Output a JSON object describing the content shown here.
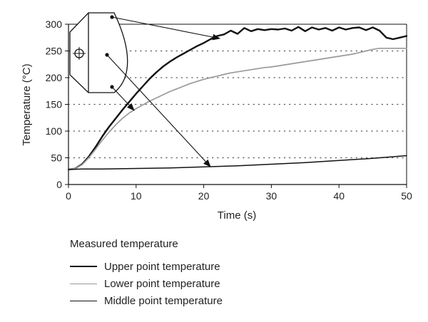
{
  "chart_data": {
    "type": "line",
    "xlabel": "Time (s)",
    "ylabel": "Temperature (°C)",
    "xlim": [
      0,
      50
    ],
    "ylim": [
      0,
      300
    ],
    "x_ticks": [
      "0",
      "10",
      "20",
      "30",
      "40",
      "50"
    ],
    "y_ticks": [
      "0",
      "50",
      "100",
      "150",
      "200",
      "250",
      "300"
    ],
    "grid": "horizontal dotted",
    "legend_title": "Measured temperature",
    "legend_placement": "below",
    "series": [
      {
        "name": "Upper point temperature",
        "color": "#111111",
        "x": [
          0,
          1,
          2,
          3,
          4,
          5,
          6,
          7,
          8,
          9,
          10,
          11,
          12,
          13,
          14,
          15,
          16,
          17,
          18,
          19,
          20,
          21,
          22,
          23,
          24,
          25,
          26,
          27,
          28,
          29,
          30,
          31,
          32,
          33,
          34,
          35,
          36,
          37,
          38,
          39,
          40,
          41,
          42,
          43,
          44,
          45,
          46,
          47,
          48,
          49,
          50
        ],
        "y": [
          28,
          30,
          38,
          52,
          70,
          90,
          108,
          124,
          140,
          155,
          170,
          184,
          198,
          210,
          221,
          230,
          238,
          245,
          252,
          259,
          265,
          272,
          278,
          281,
          288,
          282,
          293,
          287,
          291,
          289,
          291,
          290,
          292,
          288,
          295,
          287,
          294,
          290,
          293,
          288,
          294,
          290,
          293,
          294,
          289,
          294,
          288,
          275,
          272,
          275,
          278
        ]
      },
      {
        "name": "Lower point temperature",
        "color": "#9a9a9a",
        "x": [
          0,
          1,
          2,
          3,
          4,
          5,
          6,
          7,
          8,
          9,
          10,
          11,
          12,
          13,
          14,
          15,
          16,
          17,
          18,
          19,
          20,
          21,
          22,
          23,
          24,
          25,
          26,
          27,
          28,
          29,
          30,
          31,
          32,
          33,
          34,
          35,
          36,
          37,
          38,
          39,
          40,
          41,
          42,
          43,
          44,
          45,
          46,
          47,
          48,
          49,
          50
        ],
        "y": [
          28,
          30,
          37,
          50,
          66,
          83,
          98,
          112,
          124,
          134,
          142,
          149,
          156,
          162,
          168,
          174,
          179,
          184,
          189,
          193,
          197,
          200,
          203,
          206,
          209,
          211,
          213,
          215,
          217,
          219,
          220,
          222,
          224,
          226,
          228,
          230,
          232,
          234,
          236,
          238,
          240,
          242,
          244,
          247,
          250,
          253,
          255,
          255,
          255,
          255,
          255
        ]
      },
      {
        "name": "Middle point temperature",
        "color": "#111111",
        "x": [
          0,
          2,
          5,
          10,
          15,
          20,
          25,
          30,
          35,
          40,
          45,
          50
        ],
        "y": [
          28,
          29,
          29,
          30,
          31,
          33,
          35,
          38,
          41,
          45,
          49,
          54
        ]
      }
    ]
  }
}
